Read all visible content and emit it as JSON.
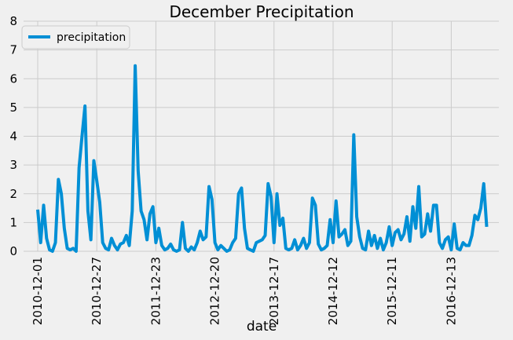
{
  "chart_data": {
    "type": "line",
    "title": "December Precipitation",
    "x_label": "date",
    "categories": [
      "2010-12-01",
      null,
      null,
      null,
      null,
      null,
      null,
      null,
      null,
      null,
      null,
      null,
      null,
      null,
      null,
      null,
      null,
      null,
      null,
      null,
      "2010-12-27",
      null,
      null,
      null,
      null,
      null,
      null,
      null,
      null,
      null,
      null,
      null,
      null,
      null,
      null,
      null,
      null,
      null,
      null,
      null,
      "2011-12-23",
      null,
      null,
      null,
      null,
      null,
      null,
      null,
      null,
      null,
      null,
      null,
      null,
      null,
      null,
      null,
      null,
      null,
      null,
      null,
      "2012-12-20",
      null,
      null,
      null,
      null,
      null,
      null,
      null,
      null,
      null,
      null,
      null,
      null,
      null,
      null,
      null,
      null,
      null,
      null,
      null,
      "2013-12-17",
      null,
      null,
      null,
      null,
      null,
      null,
      null,
      null,
      null,
      null,
      null,
      null,
      null,
      null,
      null,
      null,
      null,
      null,
      null,
      "2014-12-12",
      null,
      null,
      null,
      null,
      null,
      null,
      null,
      null,
      null,
      null,
      null,
      null,
      null,
      null,
      null,
      null,
      null,
      null,
      null,
      "2015-12-11",
      null,
      null,
      null,
      null,
      null,
      null,
      null,
      null,
      null,
      null,
      null,
      null,
      null,
      null,
      null,
      null,
      null,
      null,
      null,
      "2016-12-13",
      null,
      null,
      null,
      null,
      null,
      null,
      null,
      null,
      null,
      null,
      null,
      null
    ],
    "series": [
      {
        "name": "precipitation",
        "color": "#008fd5",
        "values": [
          1.45,
          0.3,
          1.6,
          0.45,
          0.05,
          0,
          0.3,
          2.5,
          2.0,
          0.8,
          0.1,
          0.05,
          0.1,
          0,
          2.9,
          4.0,
          5.05,
          1.4,
          0.4,
          3.15,
          2.45,
          1.7,
          0.3,
          0.1,
          0.05,
          0.45,
          0.2,
          0.05,
          0.25,
          0.3,
          0.55,
          0.2,
          1.4,
          6.45,
          2.8,
          1.4,
          1.1,
          0.4,
          1.3,
          1.55,
          0.3,
          0.8,
          0.2,
          0.05,
          0.1,
          0.25,
          0.05,
          0,
          0.05,
          1.0,
          0.1,
          0,
          0.15,
          0.05,
          0.3,
          0.7,
          0.4,
          0.5,
          2.25,
          1.8,
          0.3,
          0.05,
          0.2,
          0.1,
          0,
          0.05,
          0.3,
          0.45,
          2.0,
          2.2,
          0.8,
          0.1,
          0.05,
          0,
          0.3,
          0.35,
          0.4,
          0.55,
          2.35,
          1.9,
          0.3,
          2.0,
          0.9,
          1.15,
          0.1,
          0.05,
          0.1,
          0.4,
          0.05,
          0.2,
          0.45,
          0.1,
          0.3,
          1.85,
          1.6,
          0.25,
          0.05,
          0.1,
          0.2,
          1.1,
          0.3,
          1.75,
          0.5,
          0.6,
          0.75,
          0.2,
          0.35,
          4.05,
          1.2,
          0.5,
          0.1,
          0.05,
          0.7,
          0.2,
          0.55,
          0.1,
          0.45,
          0.05,
          0.3,
          0.85,
          0.2,
          0.65,
          0.75,
          0.4,
          0.6,
          1.2,
          0.35,
          1.55,
          0.8,
          2.25,
          0.5,
          0.6,
          1.3,
          0.7,
          1.6,
          1.6,
          0.3,
          0.1,
          0.4,
          0.5,
          0.05,
          0.95,
          0.1,
          0.05,
          0.3,
          0.2,
          0.2,
          0.55,
          1.25,
          1.1,
          1.5,
          2.35,
          0.85
        ]
      }
    ],
    "ylim": [
      0,
      8
    ],
    "yticks": [
      0,
      1,
      2,
      3,
      4,
      5,
      6,
      7,
      8
    ],
    "grid": true,
    "legend": "upper left"
  }
}
